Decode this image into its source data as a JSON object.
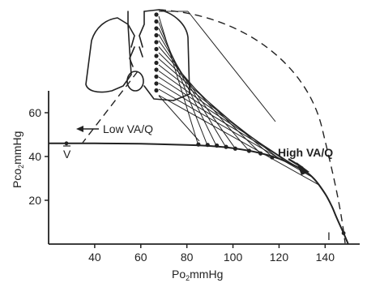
{
  "chart_data": {
    "type": "line",
    "xlabel_main": "Po",
    "xlabel_sub": "2",
    "xlabel_unit": "mmHg",
    "ylabel_main": "Pco",
    "ylabel_sub": "2",
    "ylabel_unit": "mmHg",
    "xlim": [
      20,
      155
    ],
    "ylim": [
      0,
      70
    ],
    "xticks": [
      40,
      60,
      80,
      100,
      120,
      140
    ],
    "yticks": [
      20,
      40,
      60
    ],
    "grid": false,
    "series": [
      {
        "x": [
          20,
          40,
          60,
          80,
          90,
          100,
          110,
          120,
          130,
          135,
          140,
          143,
          145,
          148,
          150
        ],
        "y": [
          46,
          46,
          45.8,
          45.3,
          44.8,
          43.8,
          42,
          39,
          34,
          30,
          23,
          17,
          12,
          5,
          0
        ]
      }
    ],
    "markers": {
      "x": [
        85,
        89,
        93,
        97,
        101,
        107,
        112,
        117
      ],
      "y": [
        45.5,
        45.3,
        45,
        44.4,
        43.6,
        42.6,
        41.4,
        39.6
      ]
    },
    "annotations": {
      "low_va_q": "Low VA/Q",
      "high_va_q": "High VA/Q",
      "venous_point": "V",
      "inspired_point": "I"
    }
  }
}
